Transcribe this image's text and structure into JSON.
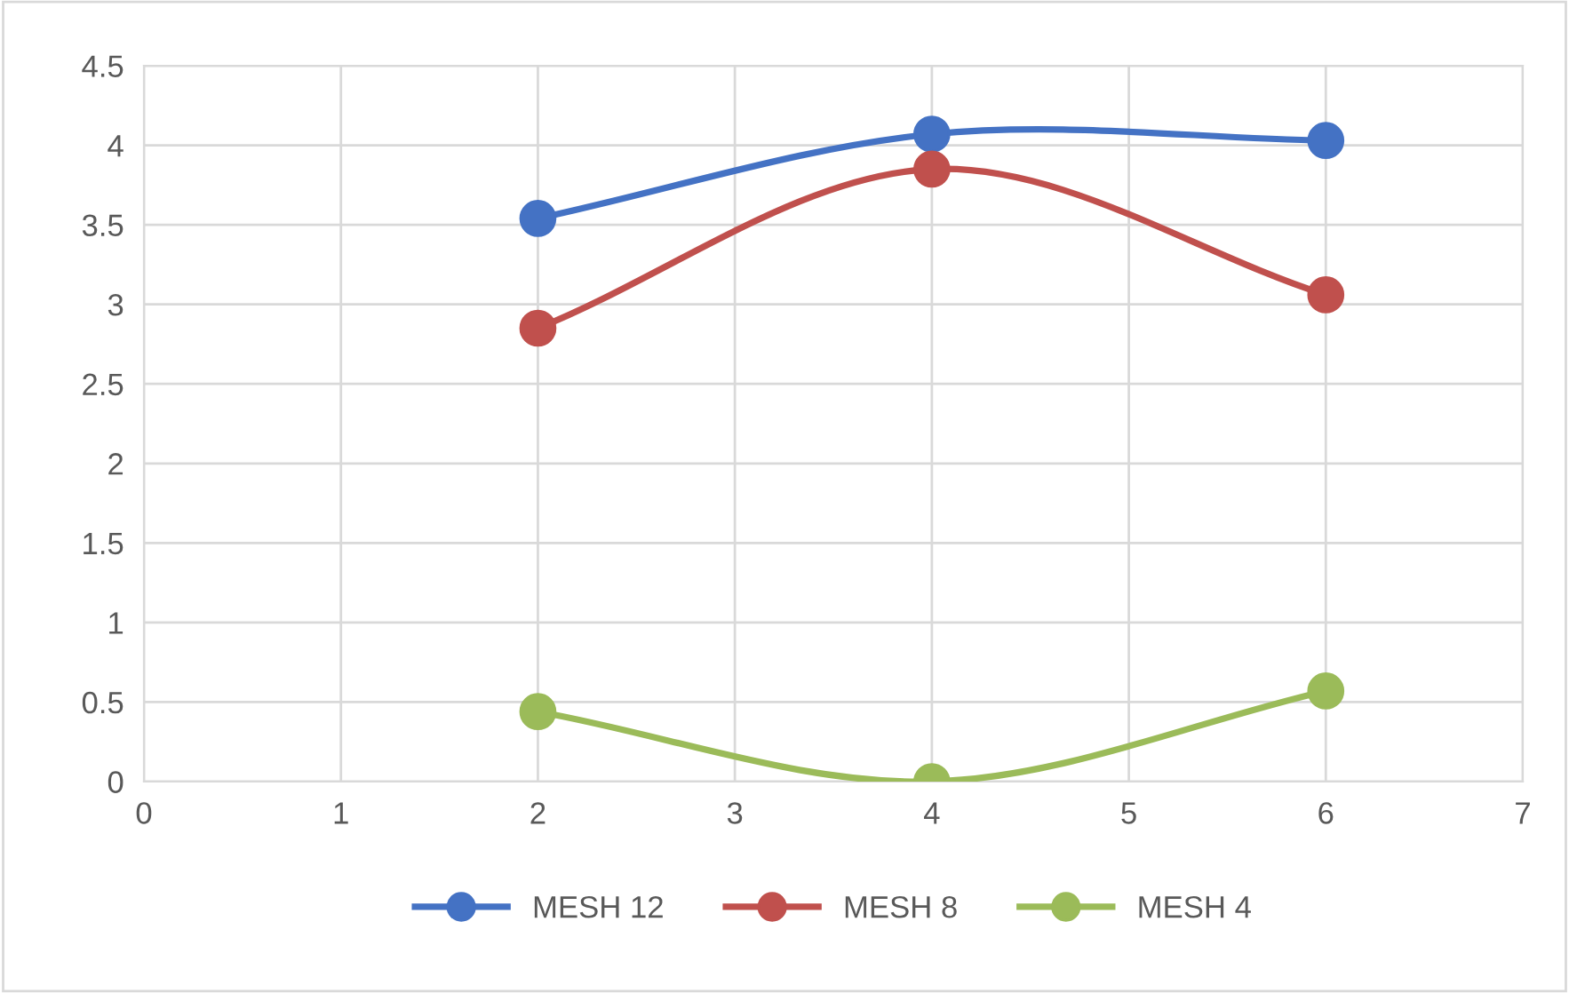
{
  "chart_data": {
    "type": "line",
    "x": [
      2,
      4,
      6
    ],
    "series": [
      {
        "name": "MESH 12",
        "color": "#4472c4",
        "values": [
          3.54,
          4.07,
          4.03
        ]
      },
      {
        "name": "MESH 8",
        "color": "#c0504d",
        "values": [
          2.85,
          3.85,
          3.06
        ]
      },
      {
        "name": "MESH 4",
        "color": "#9bbb59",
        "values": [
          0.44,
          0,
          0.57
        ]
      }
    ],
    "xlim": [
      0,
      7
    ],
    "xticks": [
      0,
      1,
      2,
      3,
      4,
      5,
      6,
      7
    ],
    "ylim": [
      0,
      4.5
    ],
    "yticks": [
      0,
      0.5,
      1,
      1.5,
      2,
      2.5,
      3,
      3.5,
      4,
      4.5
    ],
    "grid": true,
    "legend": "bottom",
    "marker": "circle",
    "line_style": "solid"
  }
}
